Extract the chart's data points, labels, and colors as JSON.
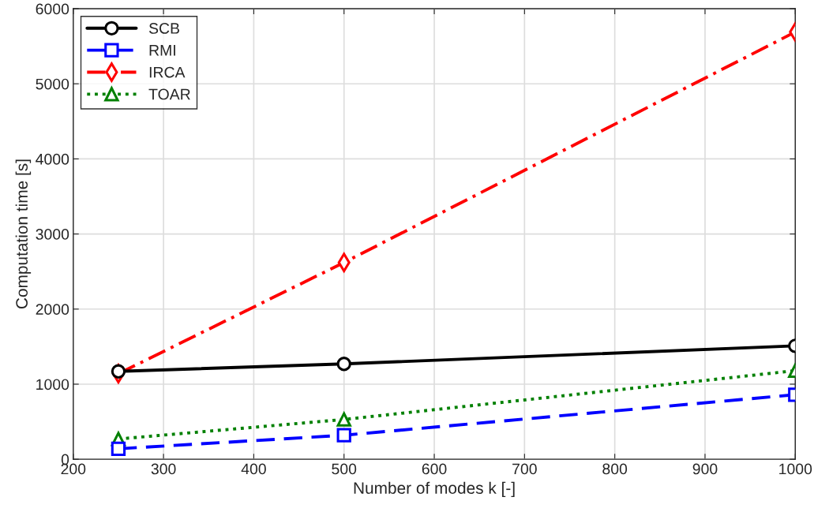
{
  "chart_data": {
    "type": "line",
    "xlabel": "Number of modes k [-]",
    "ylabel": "Computation time [s]",
    "x": [
      250,
      500,
      1000
    ],
    "series": [
      {
        "name": "SCB",
        "color": "#000000",
        "values": [
          1170,
          1270,
          1510
        ],
        "marker": "circle",
        "line_style": "solid"
      },
      {
        "name": "RMI",
        "color": "#0000ff",
        "values": [
          140,
          320,
          860
        ],
        "marker": "square",
        "line_style": "dashed"
      },
      {
        "name": "IRCA",
        "color": "#ff0000",
        "values": [
          1140,
          2620,
          5690
        ],
        "marker": "diamond",
        "line_style": "dashdot"
      },
      {
        "name": "TOAR",
        "color": "#008000",
        "values": [
          270,
          530,
          1180
        ],
        "marker": "triangle",
        "line_style": "dotted"
      }
    ],
    "xlim": [
      200,
      1000
    ],
    "xticks": [
      200,
      300,
      400,
      500,
      600,
      700,
      800,
      900,
      1000
    ],
    "ylim": [
      0,
      6000
    ],
    "yticks": [
      0,
      1000,
      2000,
      3000,
      4000,
      5000,
      6000
    ],
    "grid": true,
    "legend": "top left"
  }
}
